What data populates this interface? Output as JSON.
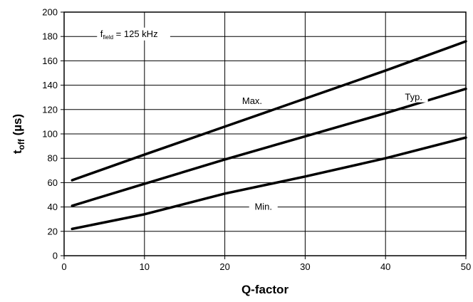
{
  "chart_data": {
    "type": "line",
    "title": "",
    "xlabel": "Q-factor",
    "ylabel": {
      "main": "t",
      "sub": "off",
      "unit": " (µs)"
    },
    "xlim": [
      0,
      50
    ],
    "ylim": [
      0,
      200
    ],
    "xticks": [
      0,
      10,
      20,
      30,
      40,
      50
    ],
    "yticks": [
      0,
      20,
      40,
      60,
      80,
      100,
      120,
      140,
      160,
      180,
      200
    ],
    "grid": true,
    "annotation": {
      "main": "f",
      "sub": "field",
      "rest": " = 125 kHz"
    },
    "series": [
      {
        "name": "Max.",
        "x": [
          1,
          10,
          20,
          30,
          40,
          50
        ],
        "y": [
          62,
          83,
          106,
          129,
          152,
          176
        ]
      },
      {
        "name": "Typ.",
        "x": [
          1,
          10,
          20,
          30,
          40,
          50
        ],
        "y": [
          41,
          59,
          79,
          98,
          117,
          137
        ]
      },
      {
        "name": "Min.",
        "x": [
          1,
          10,
          20,
          30,
          40,
          50
        ],
        "y": [
          22,
          34,
          51,
          65,
          80,
          97
        ]
      }
    ],
    "series_label_positions": [
      {
        "name": "Max.",
        "x": 23.4,
        "y": 127
      },
      {
        "name": "Typ.",
        "x": 43.5,
        "y": 130
      },
      {
        "name": "Min.",
        "x": 24.8,
        "y": 40
      }
    ]
  }
}
